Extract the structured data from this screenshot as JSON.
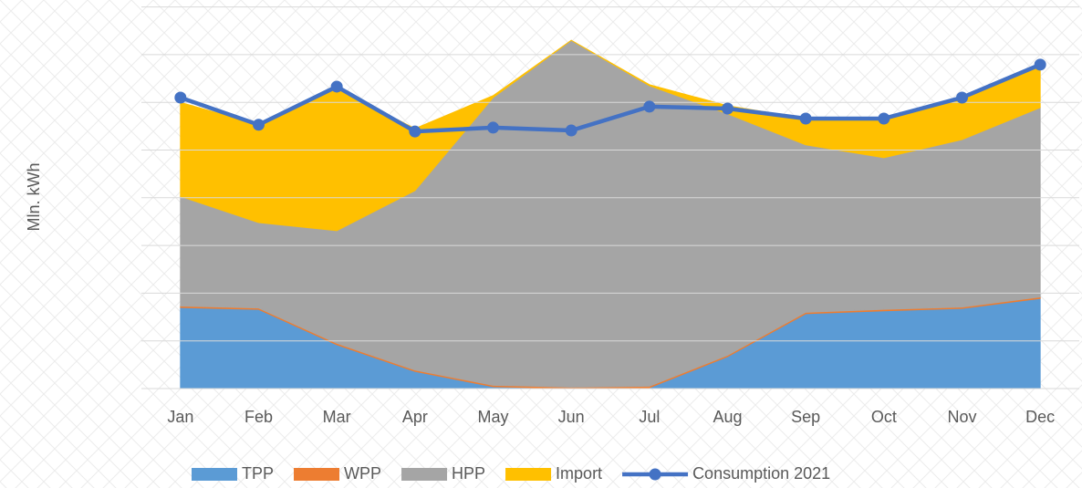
{
  "chart_data": {
    "type": "area",
    "y_axis_label": "Mln. kWh",
    "categories": [
      "Jan",
      "Feb",
      "Mar",
      "Apr",
      "May",
      "Jun",
      "Jul",
      "Aug",
      "Sep",
      "Oct",
      "Nov",
      "Dec"
    ],
    "ylim": [
      0,
      8
    ],
    "yticks": [
      0,
      1,
      2,
      3,
      4,
      5,
      6,
      7,
      8
    ],
    "grid": true,
    "legend": "bottom",
    "series": [
      {
        "name": "TPP",
        "type": "area",
        "color": "#5b9bd5",
        "values": [
          1.7,
          1.66,
          0.92,
          0.36,
          0.04,
          0.0,
          0.02,
          0.67,
          1.57,
          1.63,
          1.68,
          1.89
        ]
      },
      {
        "name": "WPP",
        "type": "area",
        "color": "#ed7d31",
        "values": [
          0.03,
          0.03,
          0.03,
          0.03,
          0.03,
          0.03,
          0.03,
          0.03,
          0.03,
          0.03,
          0.03,
          0.03
        ]
      },
      {
        "name": "HPP",
        "type": "area",
        "color": "#a5a5a5",
        "values": [
          2.3,
          1.79,
          2.36,
          3.76,
          6.03,
          7.27,
          6.3,
          5.06,
          3.51,
          3.18,
          3.51,
          3.97
        ]
      },
      {
        "name": "Import",
        "type": "area",
        "color": "#ffc000",
        "values": [
          1.97,
          2.05,
          2.98,
          1.3,
          0.04,
          0.0,
          0.02,
          0.17,
          0.55,
          0.82,
          0.9,
          0.88
        ]
      },
      {
        "name": "Consumption 2021",
        "type": "line",
        "color": "#4472c4",
        "values": [
          6.1,
          5.53,
          6.33,
          5.39,
          5.47,
          5.41,
          5.91,
          5.87,
          5.66,
          5.66,
          6.1,
          6.79
        ]
      }
    ]
  }
}
